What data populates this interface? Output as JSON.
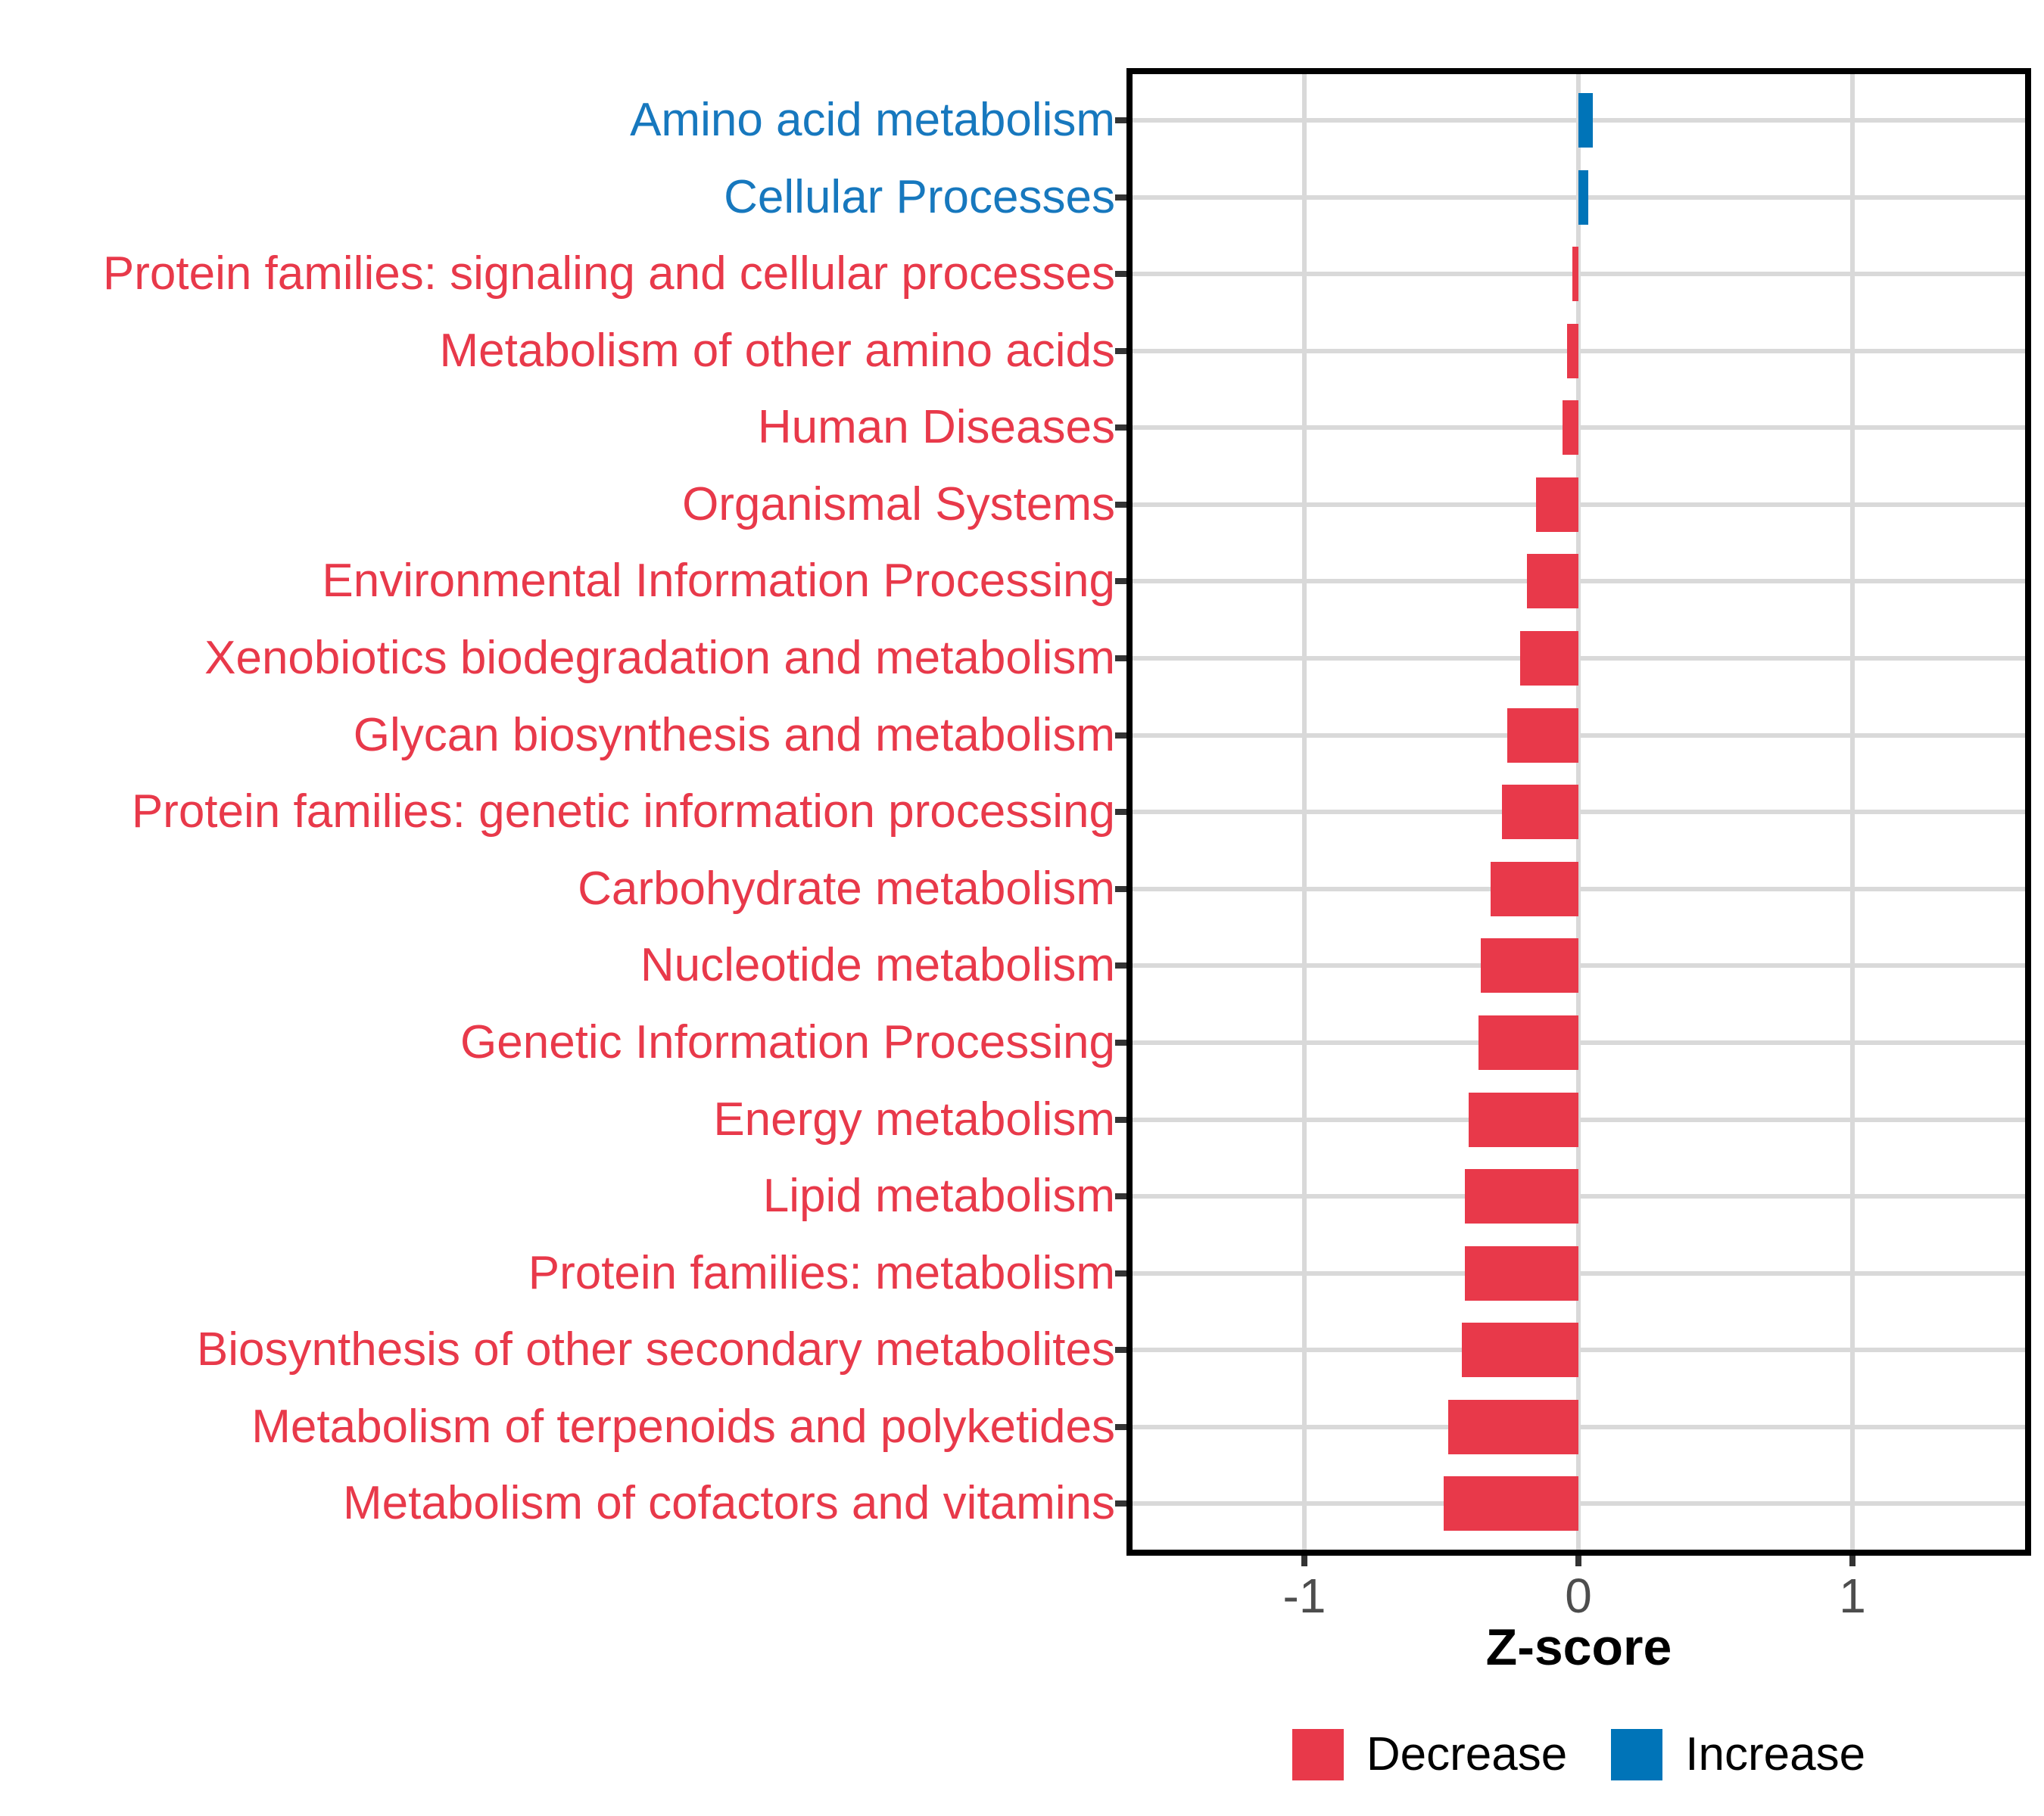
{
  "chart_data": {
    "type": "bar",
    "orientation": "horizontal",
    "title": "",
    "xlabel": "Z-score",
    "ylabel": "",
    "xlim": [
      -1.63,
      1.63
    ],
    "x_ticks": [
      -1,
      0,
      1
    ],
    "x_tick_labels": [
      "-1",
      "0",
      "1"
    ],
    "grid": "major gridlines only (light gray), white panel, black border",
    "categories": [
      "Amino acid metabolism",
      "Cellular Processes",
      "Protein families: signaling and cellular processes",
      "Metabolism of other amino acids",
      "Human Diseases",
      "Organismal Systems",
      "Environmental Information Processing",
      "Xenobiotics biodegradation and metabolism",
      "Glycan biosynthesis and metabolism",
      "Protein families: genetic information processing",
      "Carbohydrate metabolism",
      "Nucleotide metabolism",
      "Genetic Information Processing",
      "Energy metabolism",
      "Lipid metabolism",
      "Protein families: metabolism",
      "Biosynthesis of other secondary metabolites",
      "Metabolism of terpenoids and polyketides",
      "Metabolism of cofactors and vitamins"
    ],
    "values": [
      0.053,
      0.035,
      -0.022,
      -0.042,
      -0.059,
      -0.154,
      -0.189,
      -0.214,
      -0.26,
      -0.279,
      -0.32,
      -0.357,
      -0.366,
      -0.401,
      -0.413,
      -0.414,
      -0.426,
      -0.476,
      -0.493
    ],
    "directions": [
      "Increase",
      "Increase",
      "Decrease",
      "Decrease",
      "Decrease",
      "Decrease",
      "Decrease",
      "Decrease",
      "Decrease",
      "Decrease",
      "Decrease",
      "Decrease",
      "Decrease",
      "Decrease",
      "Decrease",
      "Decrease",
      "Decrease",
      "Decrease",
      "Decrease"
    ],
    "colors": {
      "decrease_bar": "#E8394A",
      "increase_bar": "#0074B8",
      "decrease_label_text": "#E8394A",
      "increase_label_text": "#1778BE",
      "gridline": "#D9D9D9",
      "panel_border": "#000000",
      "tick_mark": "#333333",
      "tick_label": "#4D4D4D"
    },
    "legend": {
      "position": "bottom-center",
      "entries": [
        {
          "label": "Decrease",
          "color": "#E8394A"
        },
        {
          "label": "Increase",
          "color": "#0074B8"
        }
      ]
    }
  },
  "axis": {
    "title": "Z-score"
  }
}
